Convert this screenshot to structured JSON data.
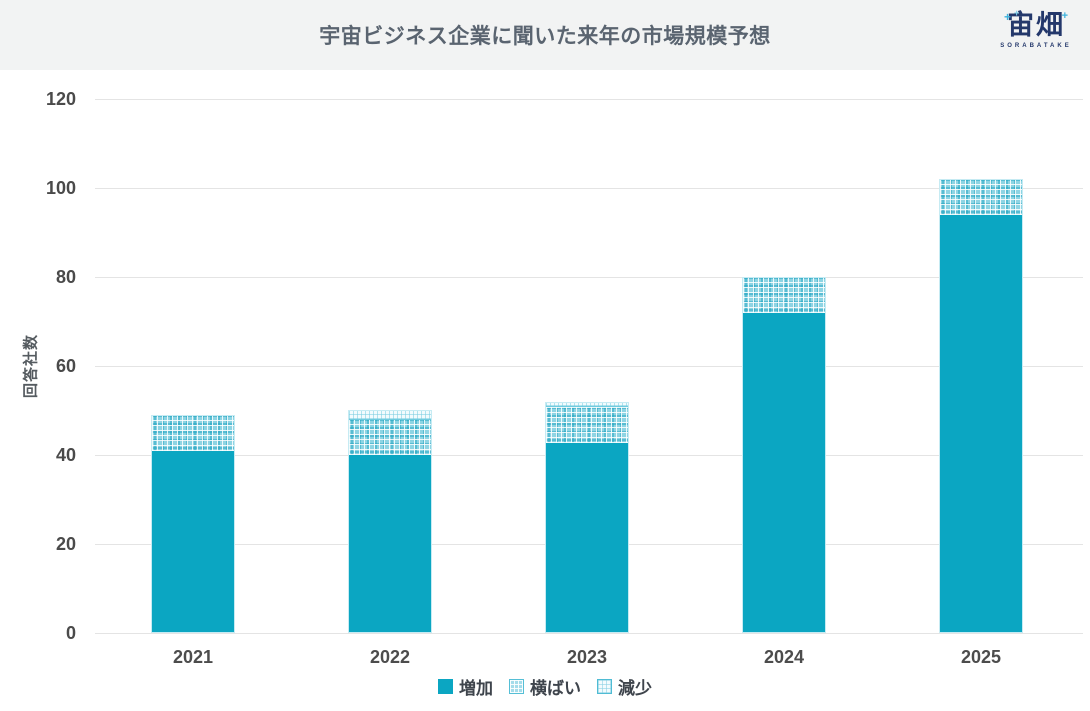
{
  "header": {
    "title": "宇宙ビジネス企業に聞いた来年の市場規模予想",
    "logo": {
      "name": "宙畑",
      "subtext": "SORABATAKE",
      "accent_color": "#3db3dd",
      "text_color": "#24386b"
    }
  },
  "chart_data": {
    "type": "bar",
    "stacked": true,
    "title": "宇宙ビジネス企業に聞いた来年の市場規模予想",
    "xlabel": "",
    "ylabel": "回答社数",
    "categories": [
      "2021",
      "2022",
      "2023",
      "2024",
      "2025"
    ],
    "series": [
      {
        "name": "増加",
        "style": "solid",
        "color": "#0ba6c2",
        "values": [
          41,
          40,
          43,
          72,
          94
        ]
      },
      {
        "name": "横ばい",
        "style": "dotted",
        "color": "#8ed4e3",
        "values": [
          8,
          8,
          8,
          8,
          8
        ]
      },
      {
        "name": "減少",
        "style": "light",
        "color": "#f2fbfd",
        "values": [
          0,
          2,
          1,
          0,
          0
        ]
      }
    ],
    "totals": [
      49,
      50,
      52,
      80,
      102
    ],
    "ylim": [
      0,
      120
    ],
    "yticks": [
      0,
      20,
      40,
      60,
      80,
      100,
      120
    ],
    "grid": true,
    "legend_position": "bottom"
  }
}
